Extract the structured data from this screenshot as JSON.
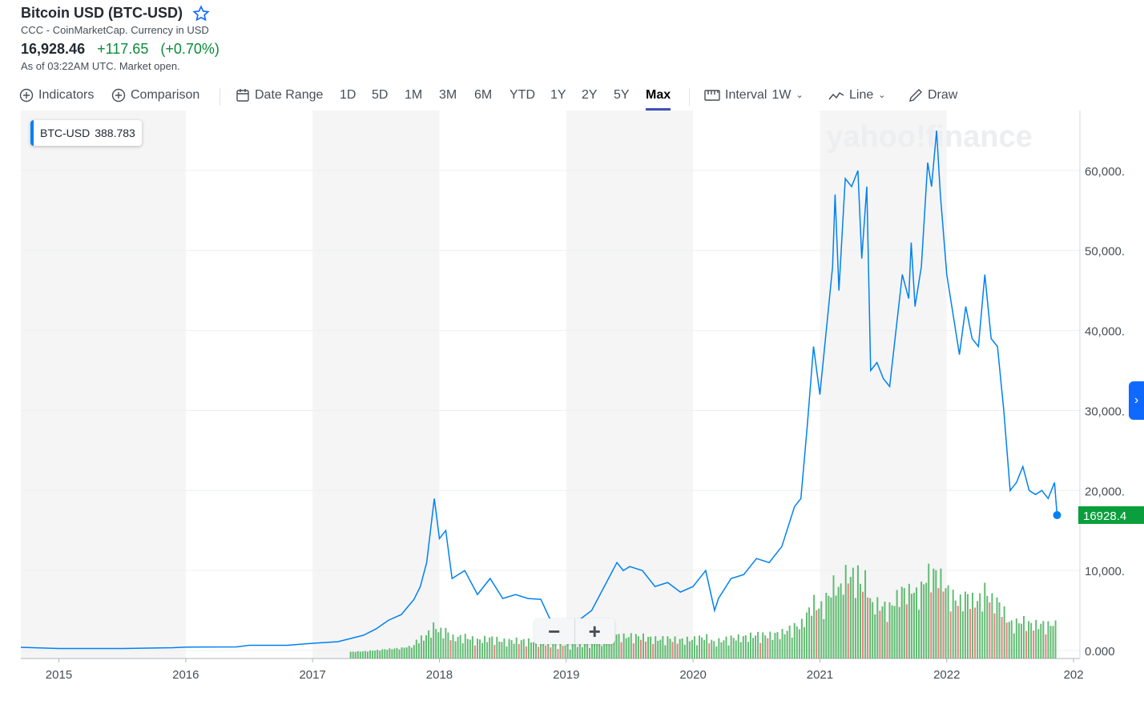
{
  "header": {
    "title": "Bitcoin USD (BTC-USD)",
    "source": "CCC - CoinMarketCap. Currency in USD",
    "price": "16,928.46",
    "change": "+117.65",
    "change_pct": "(+0.70%)",
    "as_of": "As of 03:22AM UTC. Market open."
  },
  "toolbar": {
    "indicators": "Indicators",
    "comparison": "Comparison",
    "date_range": "Date Range",
    "ranges": [
      "1D",
      "5D",
      "1M",
      "3M",
      "6M",
      "YTD",
      "1Y",
      "2Y",
      "5Y",
      "Max"
    ],
    "selected_range": "Max",
    "interval_label": "Interval",
    "interval_value": "1W",
    "chart_type": "Line",
    "draw": "Draw"
  },
  "legend": {
    "symbol": "BTC-USD",
    "value": "388.783"
  },
  "zoom": {
    "minus": "−",
    "plus": "+"
  },
  "colors": {
    "line": "#0081f2",
    "up": "#0b8a3a",
    "down": "#e0383e",
    "price_tag": "#0a9f3c"
  },
  "watermark": "yahoo!finance",
  "chart_data": {
    "type": "line",
    "series": [
      {
        "name": "BTC-USD",
        "x": [
          2014.7,
          2015.0,
          2015.5,
          2015.9,
          2016.0,
          2016.4,
          2016.5,
          2016.8,
          2017.0,
          2017.2,
          2017.4,
          2017.5,
          2017.6,
          2017.7,
          2017.8,
          2017.85,
          2017.9,
          2017.96,
          2018.0,
          2018.05,
          2018.1,
          2018.2,
          2018.3,
          2018.4,
          2018.5,
          2018.6,
          2018.7,
          2018.8,
          2018.87,
          2018.9,
          2019.0,
          2019.1,
          2019.2,
          2019.3,
          2019.4,
          2019.45,
          2019.5,
          2019.6,
          2019.7,
          2019.8,
          2019.9,
          2020.0,
          2020.1,
          2020.17,
          2020.2,
          2020.3,
          2020.4,
          2020.5,
          2020.6,
          2020.7,
          2020.8,
          2020.85,
          2020.9,
          2020.95,
          2021.0,
          2021.05,
          2021.1,
          2021.12,
          2021.15,
          2021.2,
          2021.25,
          2021.3,
          2021.33,
          2021.37,
          2021.4,
          2021.45,
          2021.5,
          2021.55,
          2021.6,
          2021.65,
          2021.7,
          2021.72,
          2021.75,
          2021.8,
          2021.85,
          2021.88,
          2021.92,
          2021.95,
          2022.0,
          2022.05,
          2022.1,
          2022.15,
          2022.2,
          2022.25,
          2022.3,
          2022.35,
          2022.4,
          2022.45,
          2022.5,
          2022.55,
          2022.6,
          2022.65,
          2022.7,
          2022.75,
          2022.8,
          2022.85,
          2022.87
        ],
        "y": [
          400,
          250,
          250,
          350,
          430,
          450,
          650,
          650,
          900,
          1100,
          1900,
          2700,
          3800,
          4500,
          6400,
          8000,
          11000,
          19000,
          14000,
          15000,
          9000,
          10000,
          7000,
          9000,
          6500,
          7000,
          6500,
          6400,
          4000,
          3800,
          3600,
          3800,
          5000,
          8000,
          11000,
          10000,
          10500,
          10000,
          8000,
          8500,
          7300,
          8000,
          10000,
          5000,
          6500,
          9000,
          9500,
          11500,
          11000,
          13000,
          18000,
          19000,
          28000,
          38000,
          32000,
          40000,
          48000,
          57000,
          45000,
          59000,
          58000,
          60000,
          49000,
          58000,
          35000,
          36000,
          34000,
          33000,
          40000,
          47000,
          44000,
          51000,
          43000,
          48000,
          61000,
          58000,
          65000,
          57000,
          47000,
          42000,
          37000,
          43000,
          39000,
          38000,
          47000,
          39000,
          38000,
          30000,
          20000,
          21000,
          23000,
          20000,
          19500,
          20000,
          19000,
          21000,
          16928
        ]
      }
    ],
    "volume_note": "Volume bars shown along bottom (green up, red down)",
    "x_ticks": [
      "2015",
      "2016",
      "2017",
      "2018",
      "2019",
      "2020",
      "2021",
      "2022",
      "202"
    ],
    "y_ticks": [
      "0.000",
      "10,000.",
      "20,000.",
      "30,000.",
      "40,000.",
      "50,000.",
      "60,000."
    ],
    "last_price_tag": "16928.4",
    "xlim": [
      2014.7,
      2023.05
    ],
    "ylim": [
      -1000,
      67500
    ],
    "grid": true
  }
}
